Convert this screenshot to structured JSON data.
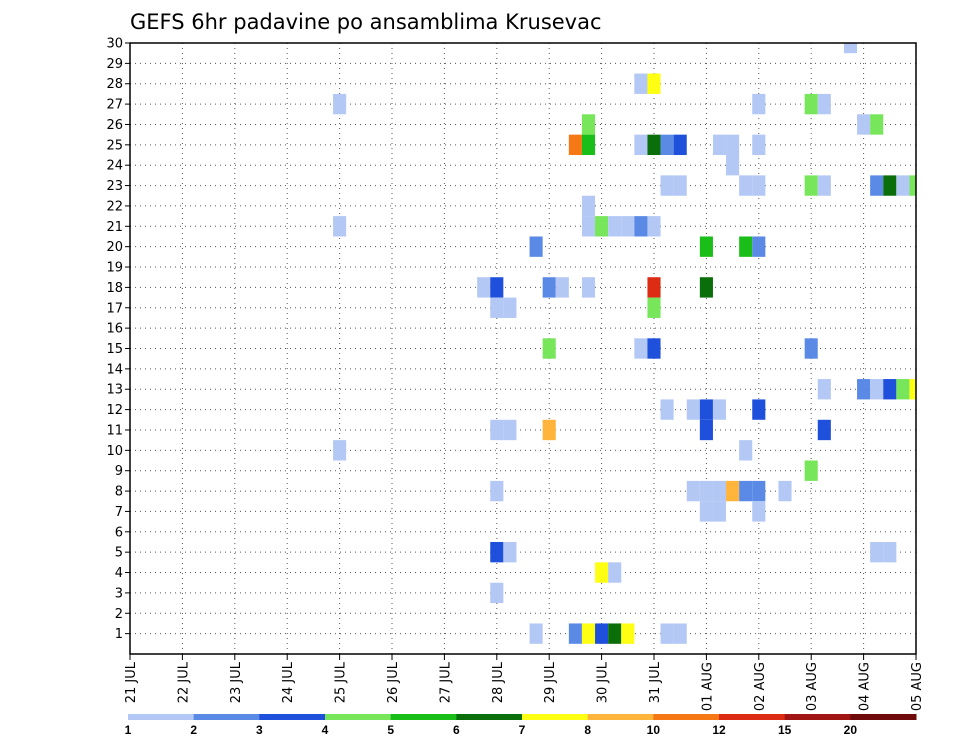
{
  "chart_data": {
    "type": "heatmap",
    "title": "GEFS 6hr padavine po ansamblima Krusevac",
    "xlabel": "",
    "ylabel": "",
    "x_tick_labels": [
      "21 JUL",
      "22 JUL",
      "23 JUL",
      "24 JUL",
      "25 JUL",
      "26 JUL",
      "27 JUL",
      "28 JUL",
      "29 JUL",
      "30 JUL",
      "31 JUL",
      "01 AUG",
      "02 AUG",
      "03 AUG",
      "04 AUG",
      "05 AUG"
    ],
    "x_steps_per_day": 4,
    "x_step_count": 60,
    "y_tick_labels": [
      "1",
      "2",
      "3",
      "4",
      "5",
      "6",
      "7",
      "8",
      "9",
      "10",
      "11",
      "12",
      "13",
      "14",
      "15",
      "16",
      "17",
      "18",
      "19",
      "20",
      "21",
      "22",
      "23",
      "24",
      "25",
      "26",
      "27",
      "28",
      "29",
      "30"
    ],
    "y_members": [
      0,
      30
    ],
    "grid": true,
    "legend": "colorbar-bottom",
    "colorbar": {
      "tick_labels": [
        "1",
        "2",
        "3",
        "4",
        "5",
        "6",
        "7",
        "8",
        "10",
        "12",
        "15",
        "20"
      ],
      "colors": [
        "#b4c8f5",
        "#5a8ae6",
        "#1e50dc",
        "#78e65a",
        "#19be19",
        "#0a6e0a",
        "#ffff14",
        "#ffb43c",
        "#f57814",
        "#dc2d14",
        "#a01414",
        "#6e0a0a"
      ]
    },
    "cells": [
      [
        55,
        30,
        1
      ],
      [
        39,
        28,
        1
      ],
      [
        40,
        28,
        7
      ],
      [
        16,
        27,
        1
      ],
      [
        48,
        27,
        1
      ],
      [
        52,
        27,
        4
      ],
      [
        53,
        27,
        1
      ],
      [
        35,
        26,
        4
      ],
      [
        56,
        26,
        1
      ],
      [
        57,
        26,
        4
      ],
      [
        34,
        25,
        9
      ],
      [
        35,
        25,
        5
      ],
      [
        39,
        25,
        1
      ],
      [
        40,
        25,
        6
      ],
      [
        41,
        25,
        2
      ],
      [
        42,
        25,
        3
      ],
      [
        45,
        25,
        1
      ],
      [
        46,
        25,
        1
      ],
      [
        48,
        25,
        1
      ],
      [
        46,
        24,
        1
      ],
      [
        41,
        23,
        1
      ],
      [
        42,
        23,
        1
      ],
      [
        47,
        23,
        1
      ],
      [
        48,
        23,
        1
      ],
      [
        52,
        23,
        4
      ],
      [
        53,
        23,
        1
      ],
      [
        57,
        23,
        2
      ],
      [
        58,
        23,
        6
      ],
      [
        59,
        23,
        1
      ],
      [
        60,
        23,
        4
      ],
      [
        61,
        23,
        1
      ],
      [
        35,
        22,
        1
      ],
      [
        16,
        21,
        1
      ],
      [
        35,
        21,
        1
      ],
      [
        36,
        21,
        4
      ],
      [
        37,
        21,
        1
      ],
      [
        38,
        21,
        1
      ],
      [
        39,
        21,
        2
      ],
      [
        40,
        21,
        1
      ],
      [
        31,
        20,
        2
      ],
      [
        44,
        20,
        5
      ],
      [
        47,
        20,
        5
      ],
      [
        48,
        20,
        2
      ],
      [
        27,
        18,
        1
      ],
      [
        28,
        18,
        3
      ],
      [
        32,
        18,
        2
      ],
      [
        33,
        18,
        1
      ],
      [
        35,
        18,
        1
      ],
      [
        40,
        18,
        10
      ],
      [
        44,
        18,
        6
      ],
      [
        28,
        17,
        1
      ],
      [
        29,
        17,
        1
      ],
      [
        40,
        17,
        4
      ],
      [
        32,
        15,
        4
      ],
      [
        39,
        15,
        1
      ],
      [
        40,
        15,
        3
      ],
      [
        52,
        15,
        2
      ],
      [
        53,
        13,
        1
      ],
      [
        56,
        13,
        2
      ],
      [
        57,
        13,
        1
      ],
      [
        58,
        13,
        3
      ],
      [
        59,
        13,
        4
      ],
      [
        60,
        13,
        7
      ],
      [
        61,
        13,
        5
      ],
      [
        41,
        12,
        1
      ],
      [
        43,
        12,
        1
      ],
      [
        44,
        12,
        3
      ],
      [
        45,
        12,
        1
      ],
      [
        48,
        12,
        3
      ],
      [
        28,
        11,
        1
      ],
      [
        29,
        11,
        1
      ],
      [
        32,
        11,
        8
      ],
      [
        44,
        11,
        3
      ],
      [
        53,
        11,
        3
      ],
      [
        16,
        10,
        1
      ],
      [
        47,
        10,
        1
      ],
      [
        52,
        9,
        4
      ],
      [
        28,
        8,
        1
      ],
      [
        43,
        8,
        1
      ],
      [
        44,
        8,
        1
      ],
      [
        45,
        8,
        1
      ],
      [
        46,
        8,
        8
      ],
      [
        47,
        8,
        2
      ],
      [
        48,
        8,
        2
      ],
      [
        50,
        8,
        1
      ],
      [
        44,
        7,
        1
      ],
      [
        45,
        7,
        1
      ],
      [
        48,
        7,
        1
      ],
      [
        28,
        5,
        3
      ],
      [
        29,
        5,
        1
      ],
      [
        57,
        5,
        1
      ],
      [
        58,
        5,
        1
      ],
      [
        61,
        5,
        1
      ],
      [
        36,
        4,
        7
      ],
      [
        37,
        4,
        1
      ],
      [
        28,
        3,
        1
      ],
      [
        31,
        1,
        1
      ],
      [
        34,
        1,
        2
      ],
      [
        35,
        1,
        7
      ],
      [
        36,
        1,
        3
      ],
      [
        37,
        1,
        6
      ],
      [
        38,
        1,
        7
      ],
      [
        41,
        1,
        1
      ],
      [
        42,
        1,
        1
      ]
    ]
  }
}
